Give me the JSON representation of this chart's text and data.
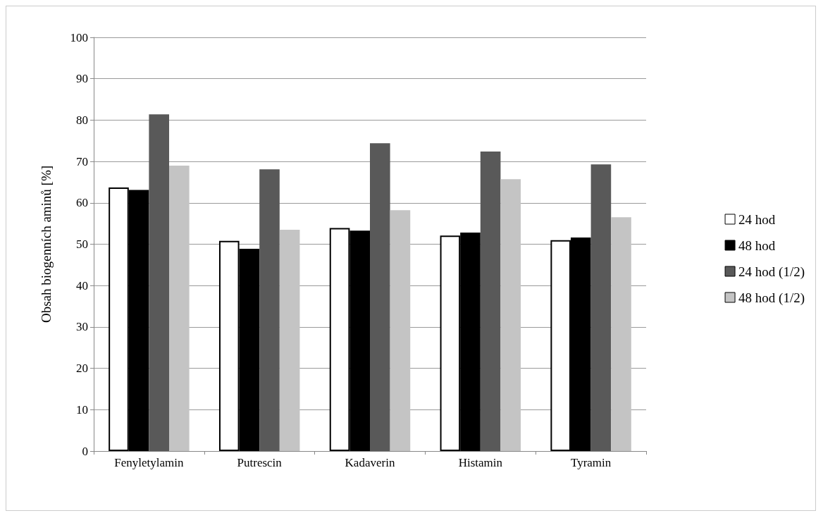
{
  "chart_data": {
    "type": "bar",
    "ylabel": "Obsah biogenních aminů [%]",
    "categories": [
      "Fenyletylamin",
      "Putrescin",
      "Kadaverin",
      "Histamin",
      "Tyramin"
    ],
    "series": [
      {
        "name": "24 hod",
        "color": "#ffffff",
        "values": [
          63.7,
          50.8,
          53.9,
          52.1,
          51.0
        ]
      },
      {
        "name": "48 hod",
        "color": "#000000",
        "values": [
          63.1,
          48.9,
          53.3,
          52.8,
          51.6
        ]
      },
      {
        "name": "24 hod (1/2)",
        "color": "#595959",
        "values": [
          81.4,
          68.1,
          74.4,
          72.4,
          69.3
        ]
      },
      {
        "name": "48 hod (1/2)",
        "color": "#c4c4c4",
        "values": [
          69.0,
          53.5,
          58.2,
          65.7,
          56.5
        ]
      }
    ],
    "ylim": [
      0,
      100
    ],
    "yticks": [
      0,
      10,
      20,
      30,
      40,
      50,
      60,
      70,
      80,
      90,
      100
    ],
    "grid": "y",
    "legend": "right"
  }
}
